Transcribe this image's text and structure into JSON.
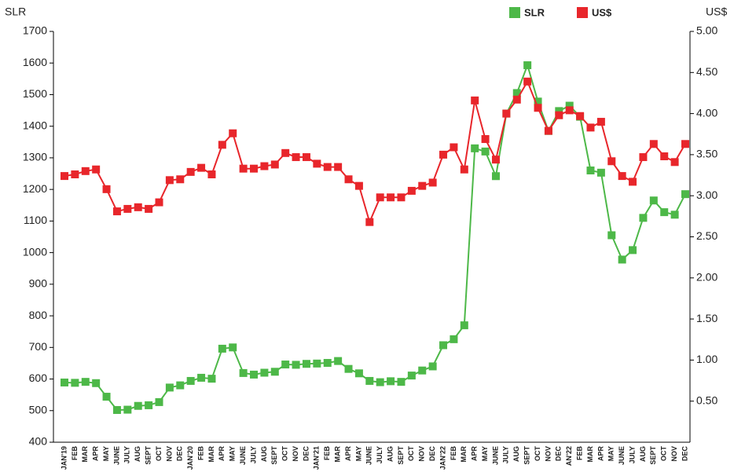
{
  "chart_data": {
    "type": "line",
    "y_label": "SLR",
    "y2_label": "US$",
    "categories": [
      "JAN'19",
      "FEB",
      "MAR",
      "APR",
      "MAY",
      "JUNE",
      "JULY",
      "AUG",
      "SEPT",
      "OCT",
      "NOV",
      "DEC",
      "JAN'20",
      "FEB",
      "MAR",
      "APR",
      "MAY",
      "JUNE",
      "JULY",
      "AUG",
      "SEPT",
      "OCT",
      "NOV",
      "DEC",
      "JAN'21",
      "FEB",
      "MAR",
      "APR",
      "MAY",
      "JUNE",
      "JULY",
      "AUG",
      "SEPT",
      "OCT",
      "NOV",
      "DEC",
      "JAN'22",
      "FEB",
      "MAR",
      "APR",
      "MAY",
      "JUNE",
      "JULY",
      "AUG",
      "SEPT",
      "OCT",
      "NOV",
      "DEC",
      "AN'22",
      "FEB",
      "MAR",
      "APR",
      "MAY",
      "JUNE",
      "JULY",
      "AUG",
      "SEPT",
      "OCT",
      "NOV",
      "DEC"
    ],
    "series": [
      {
        "name": "SLR",
        "color": "#4db848",
        "axis": "y",
        "values": [
          589,
          588,
          591,
          587,
          544,
          502,
          503,
          515,
          517,
          527,
          573,
          580,
          594,
          604,
          601,
          696,
          700,
          619,
          614,
          620,
          623,
          646,
          645,
          648,
          649,
          651,
          657,
          632,
          618,
          594,
          590,
          593,
          591,
          611,
          627,
          640,
          707,
          726,
          770,
          1330,
          1320,
          1242,
          1440,
          1505,
          1593,
          1478,
          1385,
          1448,
          1465,
          1430,
          1260,
          1253,
          1055,
          978,
          1008,
          1110,
          1165,
          1128,
          1120,
          1185
        ]
      },
      {
        "name": "US$",
        "color": "#e8262b",
        "axis": "y2",
        "values": [
          3.24,
          3.26,
          3.3,
          3.32,
          3.08,
          2.81,
          2.84,
          2.86,
          2.84,
          2.92,
          3.19,
          3.2,
          3.29,
          3.34,
          3.26,
          3.62,
          3.76,
          3.33,
          3.33,
          3.36,
          3.38,
          3.52,
          3.47,
          3.47,
          3.39,
          3.35,
          3.35,
          3.2,
          3.12,
          2.68,
          2.98,
          2.98,
          2.98,
          3.06,
          3.12,
          3.16,
          3.5,
          3.59,
          3.32,
          4.16,
          3.69,
          3.44,
          4.0,
          4.17,
          4.39,
          4.07,
          3.79,
          3.98,
          4.04,
          3.97,
          3.83,
          3.9,
          3.42,
          3.24,
          3.17,
          3.47,
          3.63,
          3.48,
          3.41,
          3.63
        ]
      }
    ],
    "ylim": [
      400,
      1700
    ],
    "yticks": [
      400,
      500,
      600,
      700,
      800,
      900,
      1000,
      1100,
      1200,
      1300,
      1400,
      1500,
      1600,
      1700
    ],
    "y2lim": [
      0,
      5
    ],
    "y2ticks": [
      {
        "value": 0.5,
        "label": "0.50"
      },
      {
        "value": 1,
        "label": "1.00"
      },
      {
        "value": 1.5,
        "label": "1.50"
      },
      {
        "value": 2,
        "label": "2.00"
      },
      {
        "value": 2.5,
        "label": "2.50"
      },
      {
        "value": 3,
        "label": "3.00"
      },
      {
        "value": 3.5,
        "label": "3.50"
      },
      {
        "value": 4,
        "label": "4.00"
      },
      {
        "value": 4.5,
        "label": "4.50"
      },
      {
        "value": 5,
        "label": "5.00"
      }
    ],
    "grid": false,
    "legend": "top"
  }
}
